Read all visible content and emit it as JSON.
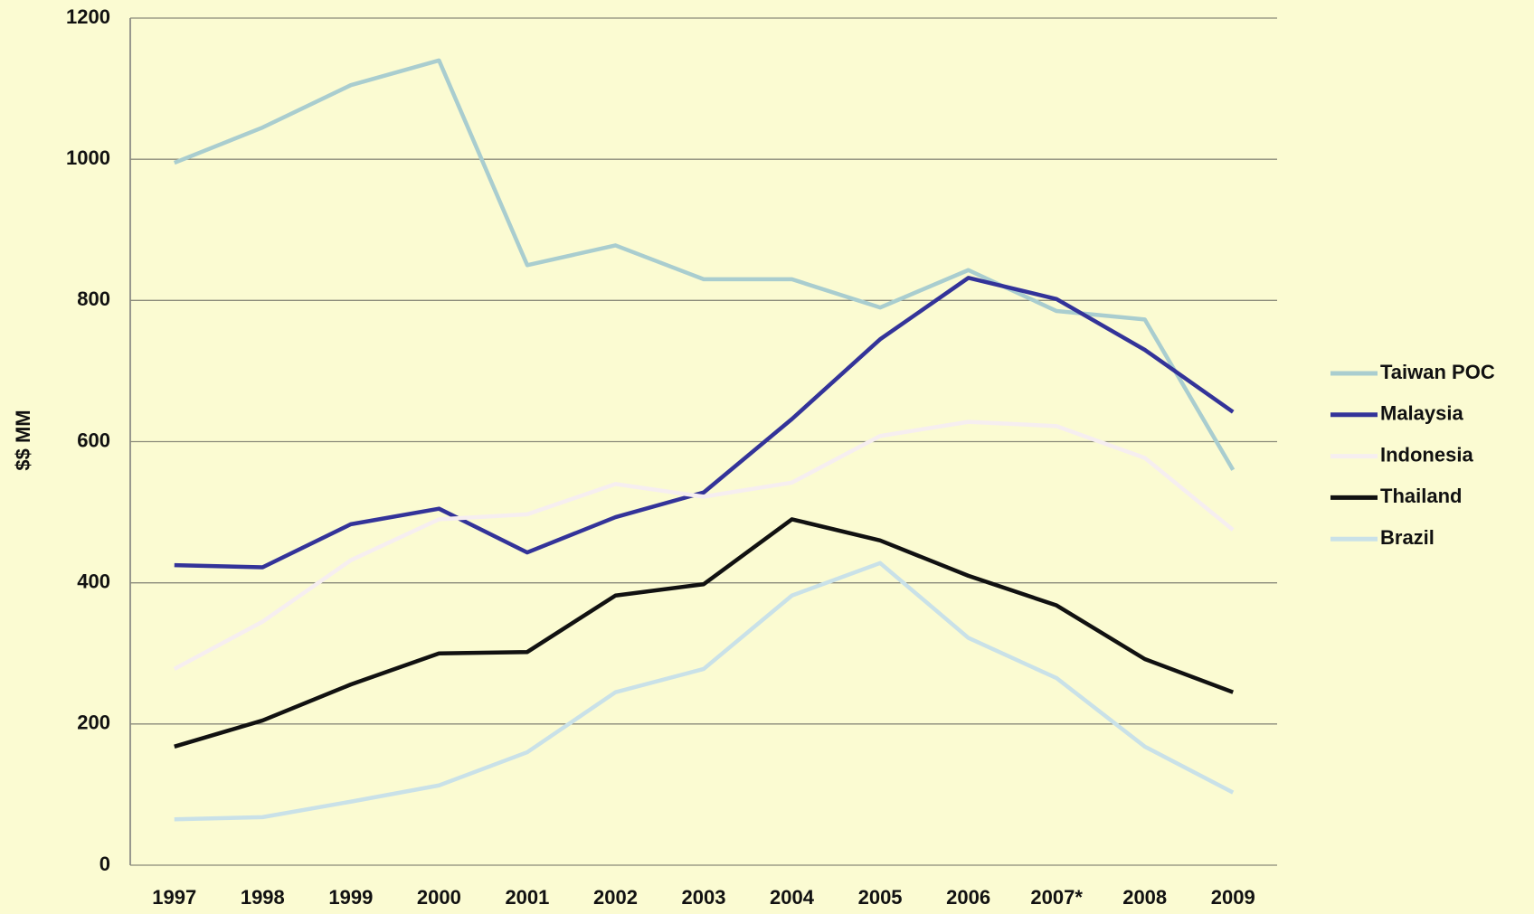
{
  "chart_data": {
    "type": "line",
    "y_label": "$$ MM",
    "categories": [
      "1997",
      "1998",
      "1999",
      "2000",
      "2001",
      "2002",
      "2003",
      "2004",
      "2005",
      "2006",
      "2007*",
      "2008",
      "2009"
    ],
    "series": [
      {
        "name": "Taiwan POC",
        "color": "#a9cdcf",
        "values": [
          995,
          1045,
          1105,
          1140,
          850,
          878,
          830,
          830,
          790,
          843,
          785,
          773,
          560
        ]
      },
      {
        "name": "Malaysia",
        "color": "#333399",
        "values": [
          425,
          422,
          483,
          505,
          443,
          493,
          528,
          632,
          745,
          832,
          802,
          730,
          642
        ]
      },
      {
        "name": "Indonesia",
        "color": "#f6eef0",
        "values": [
          278,
          345,
          432,
          490,
          497,
          540,
          522,
          542,
          608,
          628,
          622,
          577,
          475
        ]
      },
      {
        "name": "Thailand",
        "color": "#111111",
        "values": [
          168,
          205,
          256,
          300,
          302,
          382,
          398,
          490,
          460,
          410,
          368,
          292,
          245
        ]
      },
      {
        "name": "Brazil",
        "color": "#c9e1e8",
        "values": [
          65,
          68,
          90,
          113,
          160,
          245,
          278,
          382,
          428,
          322,
          265,
          168,
          103
        ]
      }
    ],
    "ylim": [
      0,
      1200
    ],
    "yticks": [
      0,
      200,
      400,
      600,
      800,
      1000,
      1200
    ],
    "grid": true,
    "legend": "right"
  }
}
